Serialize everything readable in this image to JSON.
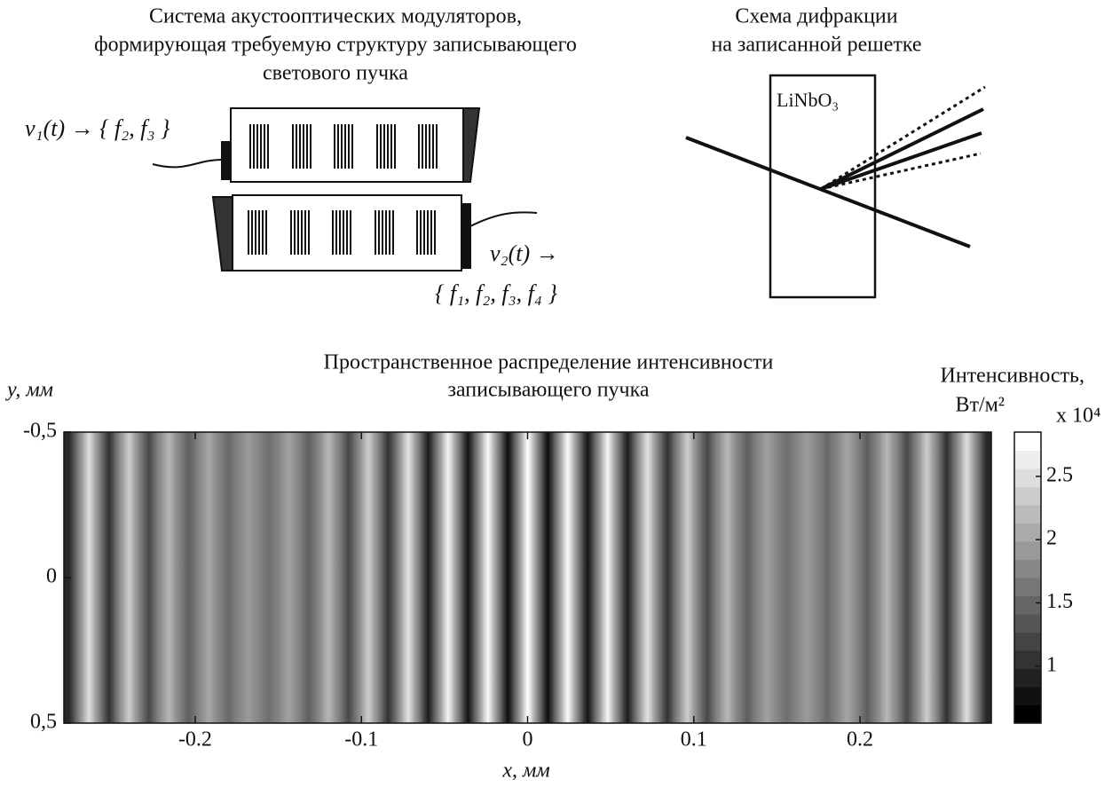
{
  "diagrams": {
    "modulators": {
      "title_lines": [
        "Система акустооптических модуляторов,",
        "формирующая требуемую структуру записывающего",
        "светового пучка"
      ],
      "v1": "v₁(t) → { f₂, f₃ }",
      "v2": "v₂(t) →",
      "v2_freqs": "{ f₁, f₂, f₃, f₄ }"
    },
    "diffraction": {
      "title_lines": [
        "Схема дифракции",
        "на записанной решетке"
      ],
      "crystal": "LiNbO₃"
    }
  },
  "chart_data": {
    "type": "heatmap",
    "title_lines": [
      "Пространственное распределение интенсивности",
      "записывающего пучка"
    ],
    "x_label": "x, мм",
    "y_label": "y, мм",
    "colorbar_label_lines": [
      "Интенсивность,",
      "Вт/м²"
    ],
    "colormap": "gray",
    "x": [
      -0.276,
      -0.27,
      -0.264,
      -0.258,
      -0.252,
      -0.246,
      -0.24,
      -0.234,
      -0.228,
      -0.222,
      -0.216,
      -0.21,
      -0.204,
      -0.198,
      -0.192,
      -0.186,
      -0.18,
      -0.174,
      -0.168,
      -0.162,
      -0.156,
      -0.15,
      -0.144,
      -0.138,
      -0.132,
      -0.126,
      -0.12,
      -0.114,
      -0.108,
      -0.102,
      -0.096,
      -0.09,
      -0.084,
      -0.078,
      -0.072,
      -0.066,
      -0.06,
      -0.054,
      -0.048,
      -0.042,
      -0.036,
      -0.03,
      -0.024,
      -0.018,
      -0.012,
      -0.006,
      0,
      0.006,
      0.012,
      0.018,
      0.024,
      0.03,
      0.036,
      0.042,
      0.048,
      0.054,
      0.06,
      0.066,
      0.072,
      0.078,
      0.084,
      0.09,
      0.096,
      0.102,
      0.108,
      0.114,
      0.12,
      0.126,
      0.132,
      0.138,
      0.144,
      0.15,
      0.156,
      0.162,
      0.168,
      0.174,
      0.18,
      0.186,
      0.192,
      0.198,
      0.204,
      0.21,
      0.216,
      0.222,
      0.228,
      0.234,
      0.24,
      0.246,
      0.252,
      0.258,
      0.264,
      0.27,
      0.276
    ],
    "values": [
      0.9,
      1.75,
      2.55,
      1.75,
      1.0,
      1.75,
      2.4,
      1.75,
      1.2,
      1.75,
      2.2,
      1.75,
      1.4,
      1.75,
      2.05,
      1.75,
      1.5,
      1.75,
      1.95,
      1.75,
      1.55,
      1.75,
      2.0,
      1.75,
      1.4,
      1.75,
      2.2,
      1.75,
      1.2,
      1.75,
      2.4,
      1.75,
      1.0,
      1.75,
      2.6,
      1.75,
      0.8,
      1.75,
      2.75,
      1.75,
      0.72,
      1.75,
      2.8,
      1.75,
      0.67,
      1.75,
      2.85,
      1.75,
      0.67,
      1.75,
      2.8,
      1.75,
      0.72,
      1.75,
      2.75,
      1.75,
      0.8,
      1.75,
      2.6,
      1.75,
      1.0,
      1.75,
      2.4,
      1.75,
      1.2,
      1.75,
      2.2,
      1.75,
      1.4,
      1.75,
      2.0,
      1.75,
      1.55,
      1.75,
      1.95,
      1.75,
      1.5,
      1.75,
      2.05,
      1.75,
      1.4,
      1.75,
      2.2,
      1.75,
      1.2,
      1.75,
      2.4,
      1.75,
      1.0,
      1.75,
      2.55,
      1.75,
      0.9
    ],
    "xlim": [
      -0.279,
      0.279
    ],
    "xticks": [
      -0.2,
      -0.1,
      0,
      0.1,
      0.2
    ],
    "ylim": [
      -0.5,
      0.5
    ],
    "y_inverted": true,
    "yticks": [
      {
        "value": -0.5,
        "label": "-0,5"
      },
      0,
      {
        "value": 0.5,
        "label": "0,5"
      }
    ],
    "colorbar": {
      "lim": [
        0.55,
        2.85
      ],
      "ticks": [
        1,
        1.5,
        2,
        2.5
      ],
      "multiplier": "x 10⁴"
    }
  }
}
